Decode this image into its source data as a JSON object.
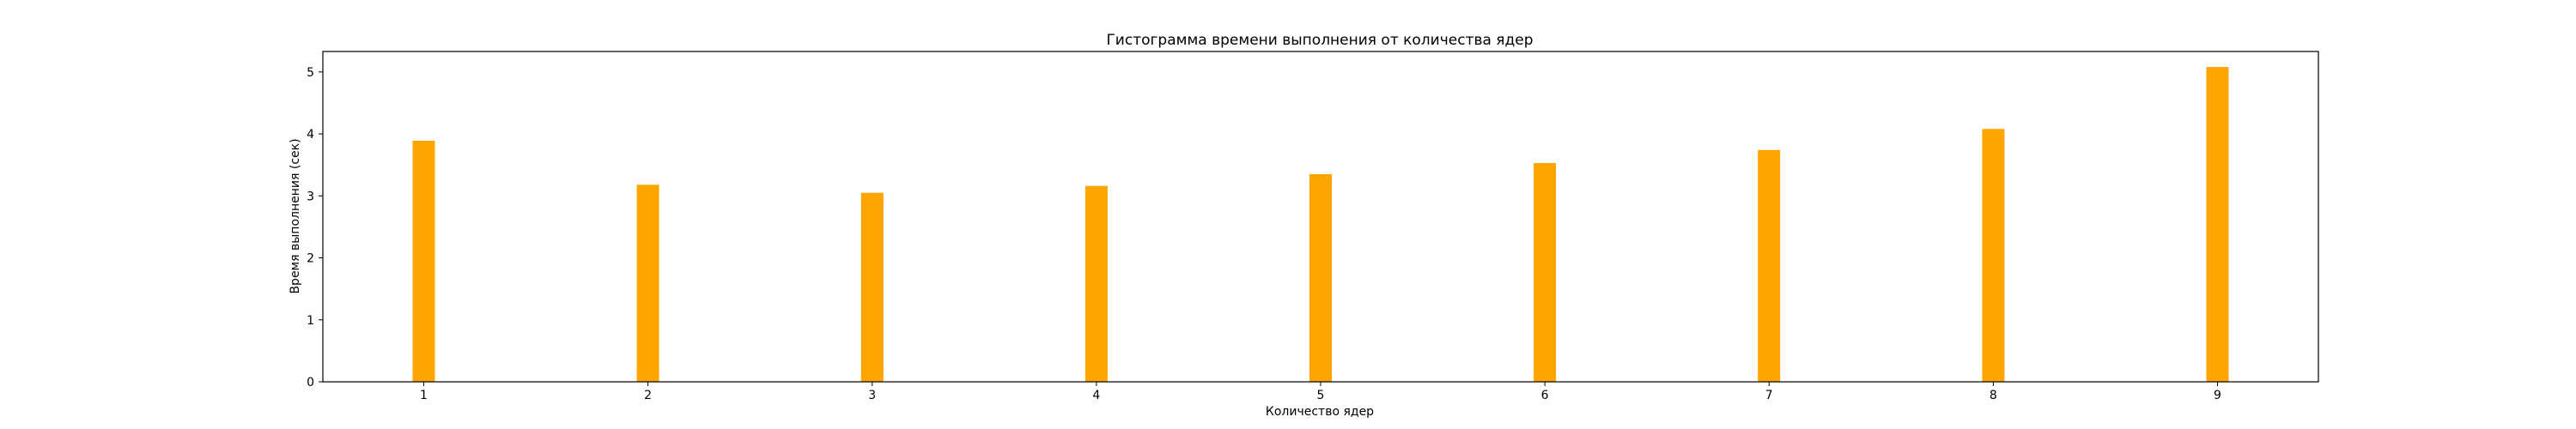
{
  "chart_data": {
    "type": "bar",
    "title": "Гистограмма времени выполнения от количества ядер",
    "xlabel": "Количество ядер",
    "ylabel": "Время выполнения (сек)",
    "categories": [
      "1",
      "2",
      "3",
      "4",
      "5",
      "6",
      "7",
      "8",
      "9"
    ],
    "x": [
      1,
      2,
      3,
      4,
      5,
      6,
      7,
      8,
      9
    ],
    "values": [
      3.89,
      3.18,
      3.05,
      3.16,
      3.35,
      3.53,
      3.74,
      4.08,
      5.08
    ],
    "xlim": [
      0.55,
      9.45
    ],
    "ylim": [
      0,
      5.33
    ],
    "yticks": [
      0,
      1,
      2,
      3,
      4,
      5
    ],
    "grid": false,
    "legend": "none",
    "bar_color": "#ffa500",
    "axis_color": "#000000"
  }
}
